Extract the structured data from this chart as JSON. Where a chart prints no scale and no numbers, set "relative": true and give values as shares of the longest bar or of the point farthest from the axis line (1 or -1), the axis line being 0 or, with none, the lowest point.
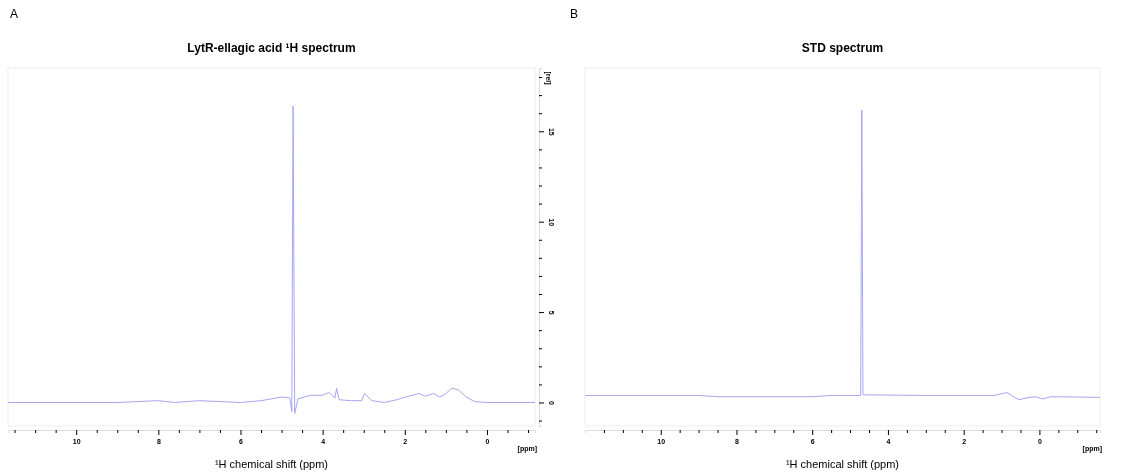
{
  "chart_data": [
    {
      "type": "line",
      "title": "LytR-ellagic acid ¹H spectrum",
      "xlabel": "¹H chemical shift (ppm)",
      "ylabel": "[rel]",
      "annotations": [
        "A",
        "[ppm]"
      ],
      "x": [
        11.66,
        9.0,
        8.0,
        7.6,
        7.0,
        6.5,
        6.0,
        5.5,
        5.0,
        4.8,
        4.75,
        4.72,
        4.68,
        4.6,
        4.3,
        4.0,
        3.85,
        3.7,
        3.66,
        3.6,
        3.3,
        3.05,
        2.98,
        2.8,
        2.5,
        2.2,
        1.9,
        1.65,
        1.5,
        1.3,
        1.15,
        1.0,
        0.85,
        0.7,
        0.5,
        0.3,
        0.0,
        -1.17
      ],
      "series": [
        {
          "color": "#a6a6f2",
          "values": [
            0,
            0,
            0.1,
            0,
            0.1,
            0.05,
            0,
            0.1,
            0.3,
            0.25,
            -0.5,
            16.4,
            -0.6,
            0.2,
            0.4,
            0.4,
            0.55,
            0.25,
            0.8,
            0.15,
            0.1,
            0.1,
            0.5,
            0.1,
            0,
            0.15,
            0.35,
            0.5,
            0.35,
            0.5,
            0.3,
            0.5,
            0.8,
            0.7,
            0.3,
            0.05,
            0,
            0
          ]
        }
      ],
      "xlim": [
        11.66,
        -1.17
      ],
      "ylim": [
        -1.3,
        18.5
      ],
      "xticks": [
        {
          "value": 11.5,
          "label": null
        },
        {
          "value": 11,
          "label": null
        },
        {
          "value": 10.5,
          "label": null
        },
        10,
        {
          "value": 9.5,
          "label": null
        },
        {
          "value": 9,
          "label": null
        },
        {
          "value": 8.5,
          "label": null
        },
        8,
        {
          "value": 7.5,
          "label": null
        },
        {
          "value": 7,
          "label": null
        },
        {
          "value": 6.5,
          "label": null
        },
        6,
        {
          "value": 5.5,
          "label": null
        },
        {
          "value": 5,
          "label": null
        },
        {
          "value": 4.5,
          "label": null
        },
        4,
        {
          "value": 3.5,
          "label": null
        },
        {
          "value": 3,
          "label": null
        },
        {
          "value": 2.5,
          "label": null
        },
        2,
        {
          "value": 1.5,
          "label": null
        },
        {
          "value": 1,
          "label": null
        },
        {
          "value": 0.5,
          "label": null
        },
        0,
        {
          "value": -0.5,
          "label": null
        },
        {
          "value": -1,
          "label": null
        }
      ],
      "yticks": [
        {
          "value": -1,
          "label": null
        },
        0,
        {
          "value": 1,
          "label": null
        },
        {
          "value": 2,
          "label": null
        },
        {
          "value": 3,
          "label": null
        },
        {
          "value": 4,
          "label": null
        },
        5,
        {
          "value": 6,
          "label": null
        },
        {
          "value": 7,
          "label": null
        },
        {
          "value": 8,
          "label": null
        },
        {
          "value": 9,
          "label": null
        },
        10,
        {
          "value": 11,
          "label": null
        },
        {
          "value": 12,
          "label": null
        },
        {
          "value": 13,
          "label": null
        },
        {
          "value": 14,
          "label": null
        },
        15,
        {
          "value": 16,
          "label": null
        },
        {
          "value": 17,
          "label": null
        },
        {
          "value": 18,
          "label": null
        }
      ]
    },
    {
      "type": "line",
      "title": "STD spectrum",
      "xlabel": "¹H chemical shift (ppm)",
      "annotations": [
        "B",
        "[ppm]"
      ],
      "relative": true,
      "x": [
        12.0,
        9.0,
        8.5,
        6.0,
        5.5,
        4.72,
        4.69,
        4.66,
        3.0,
        1.2,
        0.85,
        0.6,
        0.54,
        0.3,
        0.1,
        -0.08,
        -0.3,
        -1.6
      ],
      "series": [
        {
          "color": "#a6a6f2",
          "values": [
            0.108,
            0.108,
            0.104,
            0.104,
            0.108,
            0.108,
            1,
            0.11,
            0.108,
            0.108,
            0.117,
            0.098,
            0.095,
            0.101,
            0.104,
            0.097,
            0.104,
            0.102
          ]
        }
      ],
      "xlim": [
        12.0,
        -1.6
      ],
      "xticks": [
        {
          "value": 11.5,
          "label": null
        },
        {
          "value": 11,
          "label": null
        },
        {
          "value": 10.5,
          "label": null
        },
        10,
        {
          "value": 9.5,
          "label": null
        },
        {
          "value": 9,
          "label": null
        },
        {
          "value": 8.5,
          "label": null
        },
        8,
        {
          "value": 7.5,
          "label": null
        },
        {
          "value": 7,
          "label": null
        },
        {
          "value": 6.5,
          "label": null
        },
        6,
        {
          "value": 5.5,
          "label": null
        },
        {
          "value": 5,
          "label": null
        },
        {
          "value": 4.5,
          "label": null
        },
        4,
        {
          "value": 3.5,
          "label": null
        },
        {
          "value": 3,
          "label": null
        },
        {
          "value": 2.5,
          "label": null
        },
        2,
        {
          "value": 1.5,
          "label": null
        },
        {
          "value": 1,
          "label": null
        },
        {
          "value": 0.5,
          "label": null
        },
        0,
        {
          "value": -0.5,
          "label": null
        },
        {
          "value": -1,
          "label": null
        },
        {
          "value": -1.5,
          "label": null
        }
      ]
    }
  ]
}
